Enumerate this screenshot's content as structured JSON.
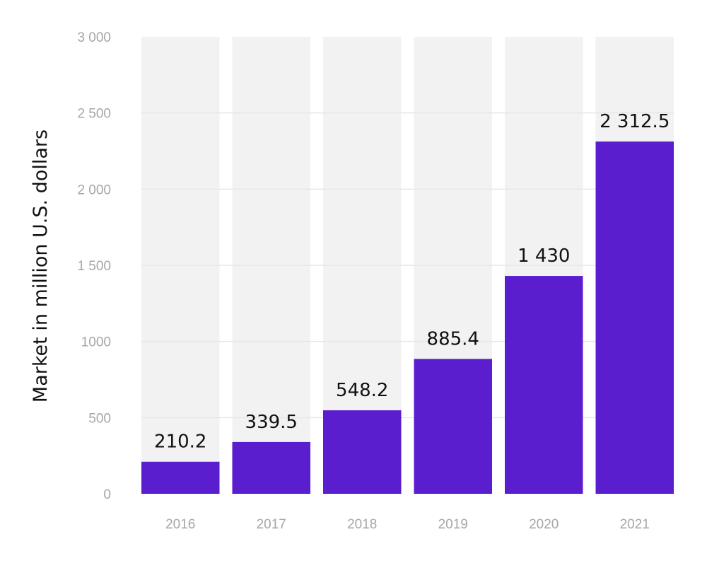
{
  "chart_data": {
    "type": "bar",
    "title": "",
    "xlabel": "",
    "ylabel": "Market in million U.S. dollars",
    "categories": [
      "2016",
      "2017",
      "2018",
      "2019",
      "2020",
      "2021"
    ],
    "values": [
      210.2,
      339.5,
      548.2,
      885.4,
      1430,
      2312.5
    ],
    "value_labels": [
      "210.2",
      "339.5",
      "548.2",
      "885.4",
      "1 430",
      "2 312.5"
    ],
    "ylim": [
      0,
      3000
    ],
    "y_ticks": [
      0,
      500,
      1000,
      1500,
      2000,
      2500,
      3000
    ],
    "y_tick_labels": [
      "0",
      "500",
      "1000",
      "1 500",
      "2 000",
      "2 500",
      "3 000"
    ],
    "grid": true,
    "legend": "none",
    "colors": {
      "bar": "#5a1ecf",
      "column_background": "#f2f2f2",
      "gridline": "#e6e6e6",
      "tick_text": "#a6a6a6",
      "label_text": "#111111"
    }
  }
}
